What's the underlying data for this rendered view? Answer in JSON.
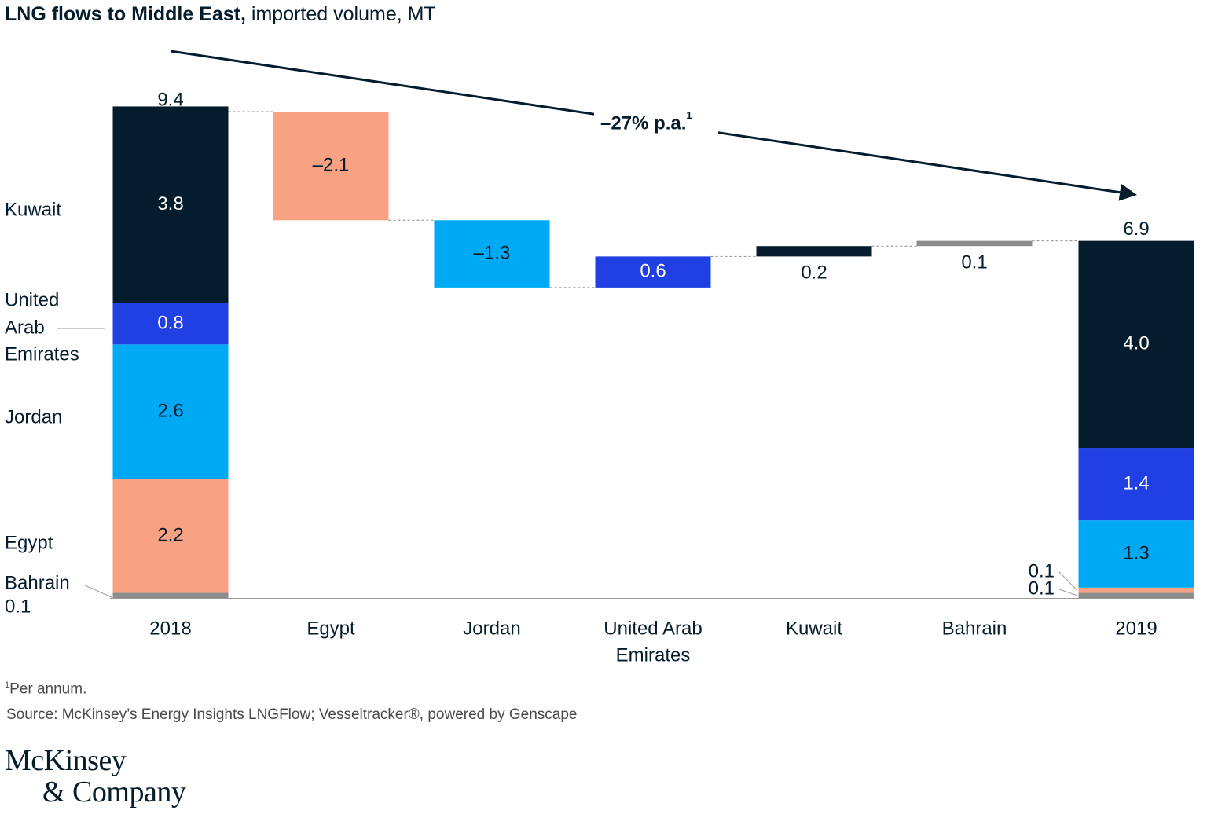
{
  "title": {
    "bold": "LNG flows to Middle East,",
    "rest": " imported volume, MT"
  },
  "colors": {
    "Kuwait": "#051c2c",
    "United Arab Emirates": "#2140e3",
    "Jordan": "#00a9f4",
    "Egypt": "#f8a183",
    "Bahrain": "#8c8c8c"
  },
  "chart_data": {
    "type": "waterfall",
    "unit": "MT",
    "ylim": [
      0,
      9.4
    ],
    "categories": [
      "2018",
      "Egypt",
      "Jordan",
      "United Arab Emirates",
      "Kuwait",
      "Bahrain",
      "2019"
    ],
    "category_labels": [
      [
        "2018"
      ],
      [
        "Egypt"
      ],
      [
        "Jordan"
      ],
      [
        "United Arab",
        "Emirates"
      ],
      [
        "Kuwait"
      ],
      [
        "Bahrain"
      ],
      [
        "2019"
      ]
    ],
    "start": {
      "label": "2018",
      "total": 9.4,
      "total_label": "9.4",
      "stack": [
        {
          "name": "Bahrain",
          "value": 0.1,
          "label": ""
        },
        {
          "name": "Egypt",
          "value": 2.2,
          "label": "2.2"
        },
        {
          "name": "Jordan",
          "value": 2.6,
          "label": "2.6"
        },
        {
          "name": "United Arab Emirates",
          "value": 0.8,
          "label": "0.8"
        },
        {
          "name": "Kuwait",
          "value": 3.8,
          "label": "3.8"
        }
      ]
    },
    "changes": [
      {
        "name": "Egypt",
        "delta": -2.1,
        "label": "–2.1"
      },
      {
        "name": "Jordan",
        "delta": -1.3,
        "label": "–1.3"
      },
      {
        "name": "United Arab Emirates",
        "delta": 0.6,
        "label": "0.6"
      },
      {
        "name": "Kuwait",
        "delta": 0.2,
        "label": "0.2"
      },
      {
        "name": "Bahrain",
        "delta": 0.1,
        "label": "0.1"
      }
    ],
    "end": {
      "label": "2019",
      "total": 6.9,
      "total_label": "6.9",
      "stack": [
        {
          "name": "Bahrain",
          "value": 0.1,
          "label": "0.1"
        },
        {
          "name": "Egypt",
          "value": 0.1,
          "label": "0.1"
        },
        {
          "name": "Jordan",
          "value": 1.3,
          "label": "1.3"
        },
        {
          "name": "United Arab Emirates",
          "value": 1.4,
          "label": "1.4"
        },
        {
          "name": "Kuwait",
          "value": 4.0,
          "label": "4.0"
        }
      ]
    },
    "side_labels": [
      {
        "name": "Kuwait",
        "lines": [
          "Kuwait"
        ]
      },
      {
        "name": "United Arab Emirates",
        "lines": [
          "United",
          "Arab",
          "Emirates"
        ]
      },
      {
        "name": "Jordan",
        "lines": [
          "Jordan"
        ]
      },
      {
        "name": "Egypt",
        "lines": [
          "Egypt"
        ]
      },
      {
        "name": "Bahrain",
        "lines": [
          "Bahrain",
          "0.1"
        ]
      }
    ],
    "trend": {
      "label": "–27% p.a.",
      "footnote_mark": "1"
    }
  },
  "footnote": {
    "mark": "1",
    "text": "Per annum."
  },
  "source": "Source: McKinsey’s Energy Insights LNGFlow; Vesseltracker®, powered by Genscape",
  "logo": {
    "line1": "McKinsey",
    "line2": "& Company"
  }
}
